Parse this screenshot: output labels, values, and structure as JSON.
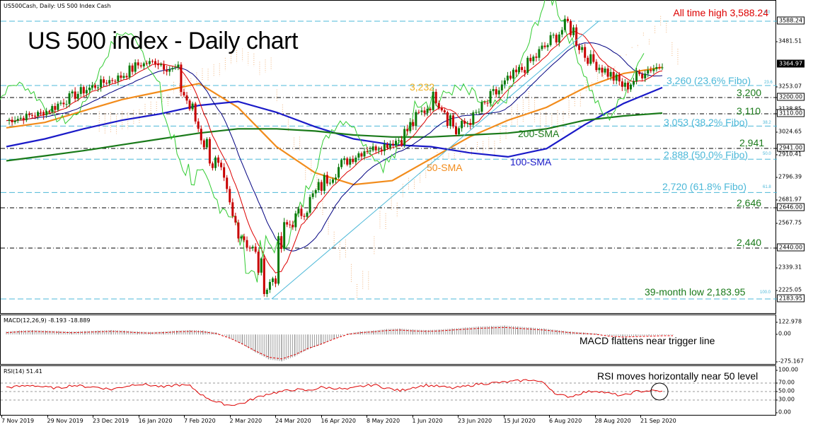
{
  "header": {
    "main": "US500Cash, Daily:  US 500 Index Cash",
    "macd": "MACD(12,26,9) -8.193 -18.889",
    "rsi": "RSI(14) 51.41"
  },
  "title": "US 500 index - Daily chart",
  "annotations": {
    "ath": "All time high 3,588.24",
    "low": "39-month low 2,183.95",
    "fib236": "3,260 (23.6% Fibo)",
    "fib382": "3,053 (38.2% Fibo)",
    "fib50": "2,888 (50.0% Fibo)",
    "fib618": "2,720 (61.8% Fibo)",
    "l3200": "3,200",
    "l3110": "3,110",
    "l2941": "2,941",
    "l2646": "2,646",
    "l2440": "2,440",
    "l3232": "3,232",
    "sma200": "200-SMA",
    "sma100": "100-SMA",
    "sma50": "50-SMA",
    "macd_note": "MACD flattens near trigger line",
    "rsi_note": "RSI moves horizontally near 50 level"
  },
  "fib_small": {
    "f0": "0.0",
    "f236": "23.6",
    "f382": "38.2",
    "f50": "50.0",
    "f618": "61.8",
    "f100": "100.0"
  },
  "colors": {
    "fib_line": "#4cb8d8",
    "sma50": "#f28c1c",
    "sma100": "#1a1ac8",
    "sma200": "#1a7a1a",
    "bull": "#0a7a0a",
    "bear": "#c80000",
    "chikou": "#33cc33",
    "kijun": "#000080",
    "tenkan": "#dd0000",
    "cloud_up": "#f0b27a",
    "cloud_dn": "#e040c0",
    "ath_text": "#dd0000",
    "rsi_line": "#dd0000",
    "macd_signal": "#dd0000"
  },
  "chart_data": [
    {
      "type": "line",
      "title": "US 500 index - Daily chart",
      "ylim": [
        2183.95,
        3600
      ],
      "y_ticks": [
        "3588.24",
        "3481.51",
        "3364.97",
        "3253.07",
        "3200.00",
        "3138.85",
        "3110.00",
        "3024.65",
        "2941.00",
        "2910.41",
        "2796.39",
        "2681.97",
        "2646.00",
        "2567.75",
        "2440.00",
        "2339.31",
        "2225.05",
        "2183.95"
      ],
      "x_ticks": [
        "7 Nov 2019",
        "29 Nov 2019",
        "23 Dec 2019",
        "16 Jan 2020",
        "7 Feb 2020",
        "2 Mar 2020",
        "24 Mar 2020",
        "16 Apr 2020",
        "8 May 2020",
        "1 Jun 2020",
        "23 Jun 2020",
        "15 Jul 2020",
        "6 Aug 2020",
        "28 Aug 2020",
        "21 Sep 2020"
      ],
      "series": [
        {
          "name": "50-SMA",
          "values": [
            3045,
            3070,
            3130,
            3190,
            3230,
            3270,
            3150,
            2950,
            2820,
            2760,
            2780,
            2890,
            3000,
            3080,
            3150,
            3250,
            3320,
            3350
          ]
        },
        {
          "name": "100-SMA",
          "values": [
            2950,
            2990,
            3040,
            3080,
            3110,
            3160,
            3180,
            3120,
            3050,
            2990,
            2960,
            2950,
            2920,
            2900,
            2940,
            3060,
            3170,
            3250
          ]
        },
        {
          "name": "200-SMA",
          "values": [
            2880,
            2905,
            2930,
            2960,
            2990,
            3020,
            3040,
            3040,
            3030,
            3010,
            3000,
            3000,
            3010,
            3020,
            3040,
            3080,
            3100,
            3115
          ]
        }
      ],
      "close_path": [
        3078,
        3095,
        3120,
        3180,
        3230,
        3270,
        3300,
        3360,
        3380,
        3330,
        3100,
        2890,
        2600,
        2450,
        2230,
        2550,
        2650,
        2780,
        2870,
        2930,
        2950,
        2990,
        3100,
        3220,
        3030,
        3100,
        3210,
        3300,
        3380,
        3480,
        3580,
        3400,
        3330,
        3250,
        3330,
        3360
      ],
      "levels": [
        3588.24,
        3260,
        3200,
        3110,
        3053,
        2941,
        2888,
        2720,
        2646,
        2440,
        2183.95
      ],
      "last_price": "3364.97"
    },
    {
      "type": "bar",
      "title": "MACD(12,26,9) -8.193 -18.889",
      "y_ticks": [
        "122.978",
        "0.00",
        "-275.167"
      ],
      "ylim": [
        -275.167,
        122.978
      ],
      "values": [
        30,
        40,
        45,
        40,
        35,
        30,
        35,
        40,
        45,
        40,
        30,
        25,
        30,
        40,
        45,
        40,
        20,
        -30,
        -100,
        -180,
        -250,
        -270,
        -220,
        -150,
        -100,
        -40,
        10,
        30,
        40,
        55,
        60,
        50,
        45,
        50,
        60,
        70,
        80,
        85,
        90,
        80,
        70,
        60,
        45,
        30,
        20,
        10,
        -10,
        -20,
        -15,
        -10,
        -5
      ]
    },
    {
      "type": "line",
      "title": "RSI(14) 51.41",
      "y_ticks": [
        "100.00",
        "70.00",
        "50.00",
        "30.00",
        "0.00"
      ],
      "ylim": [
        0,
        100
      ],
      "values": [
        60,
        62,
        65,
        60,
        58,
        65,
        62,
        60,
        55,
        62,
        68,
        65,
        60,
        66,
        63,
        40,
        25,
        18,
        22,
        35,
        45,
        50,
        55,
        52,
        60,
        58,
        55,
        62,
        66,
        58,
        52,
        60,
        65,
        62,
        58,
        62,
        68,
        70,
        72,
        75,
        78,
        70,
        42,
        38,
        48,
        52,
        45,
        40,
        50,
        52,
        51
      ]
    }
  ]
}
